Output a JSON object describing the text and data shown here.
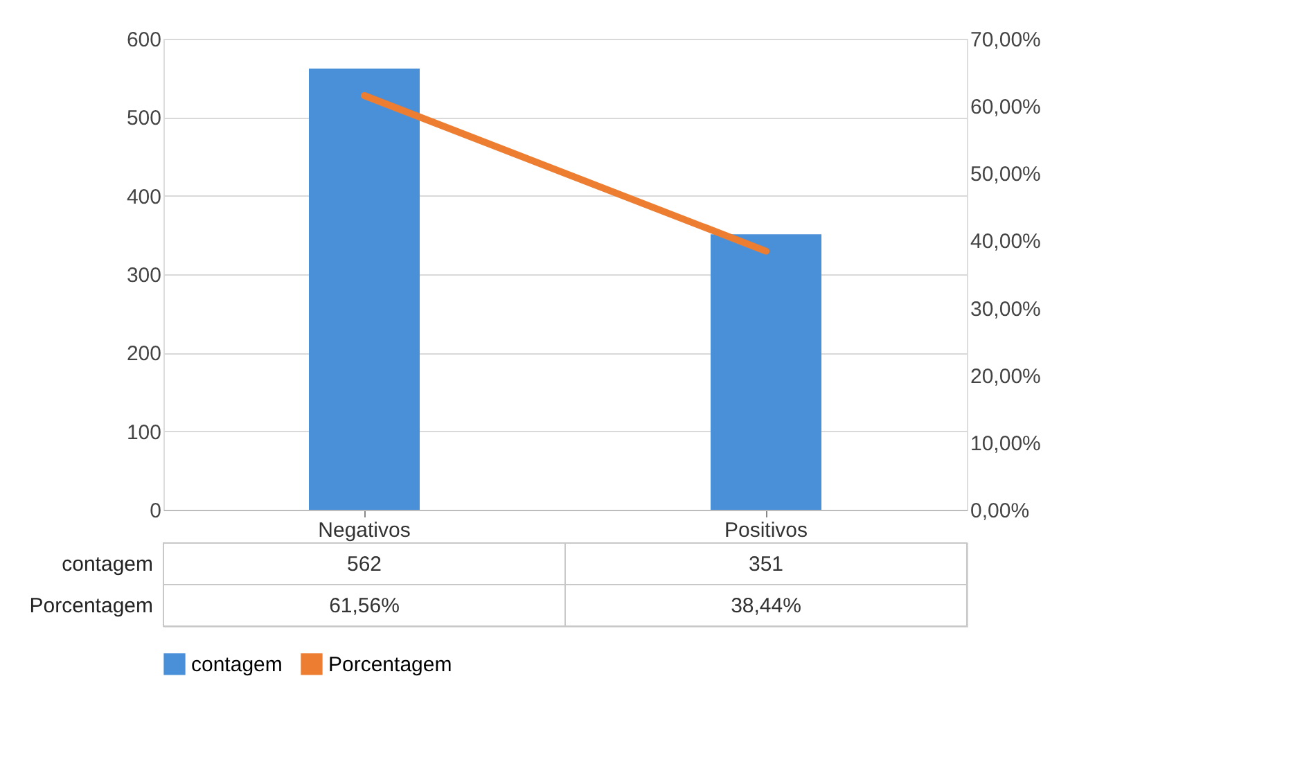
{
  "chart_data": {
    "type": "bar",
    "categories": [
      "Negativos",
      "Positivos"
    ],
    "series": [
      {
        "name": "contagem",
        "color": "#4a90d9",
        "values": [
          562,
          351
        ],
        "value_labels": [
          "562",
          "351"
        ]
      },
      {
        "name": "Porcentagem",
        "type": "line",
        "axis": "y2",
        "color": "#ed7d31",
        "values": [
          61.56,
          38.44
        ],
        "value_labels": [
          "61,56%",
          "38,44%"
        ]
      }
    ],
    "ylim": [
      0,
      600
    ],
    "yticks": [
      0,
      100,
      200,
      300,
      400,
      500,
      600
    ],
    "y2lim": [
      0,
      70
    ],
    "y2ticks": [
      {
        "value": 0,
        "label": "0,00%"
      },
      {
        "value": 10,
        "label": "10,00%"
      },
      {
        "value": 20,
        "label": "20,00%"
      },
      {
        "value": 30,
        "label": "30,00%"
      },
      {
        "value": 40,
        "label": "40,00%"
      },
      {
        "value": 50,
        "label": "50,00%"
      },
      {
        "value": 60,
        "label": "60,00%"
      },
      {
        "value": 70,
        "label": "70,00%"
      }
    ],
    "grid": "y",
    "legend": "bottom",
    "line_style": "solid",
    "marker": "none"
  }
}
